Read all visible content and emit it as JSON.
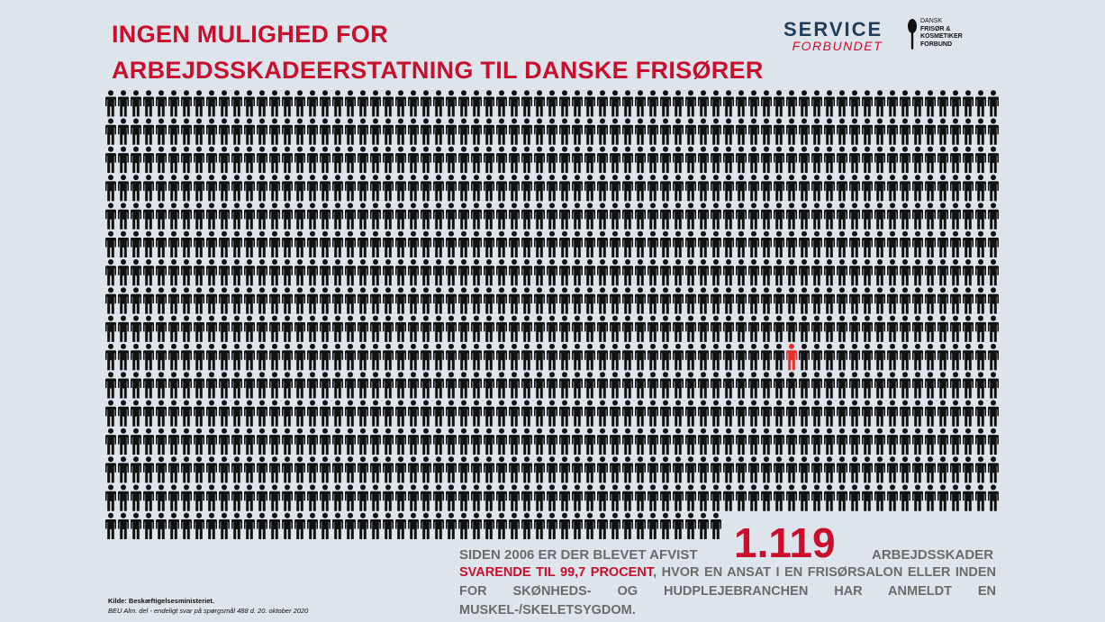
{
  "header": {
    "title_lines": [
      "INGEN MULIGHED FOR",
      "ARBEJDSSKADEERSTATNING TIL DANSKE FRISØRER"
    ]
  },
  "logos": {
    "service": [
      "SERVICE",
      "FORBUNDET"
    ],
    "dansk": [
      "DANSK",
      "FRISØR &",
      "KOSMETIKER",
      "FORBUND"
    ]
  },
  "statement": {
    "intro": "SIDEN 2006 ER DER BLEVET AFVIST",
    "number": "1.119",
    "after": "ARBEJDSSKADER",
    "highlight": "SVARENDE TIL 99,7 PROCENT",
    "rest": ", HVOR EN ANSAT I EN FRISØRSALON ELLER INDEN FOR SKØNHEDS- OG HUDPLEJEBRANCHEN HAR ANMELDT EN MUSKEL-/SKELETSYGDOM."
  },
  "source": [
    "Kilde: Beskæftigelsesministeriet.",
    "BEU Alm. del - endeligt svar på spørgsmål 488 d. 20. oktober 2020"
  ]
}
